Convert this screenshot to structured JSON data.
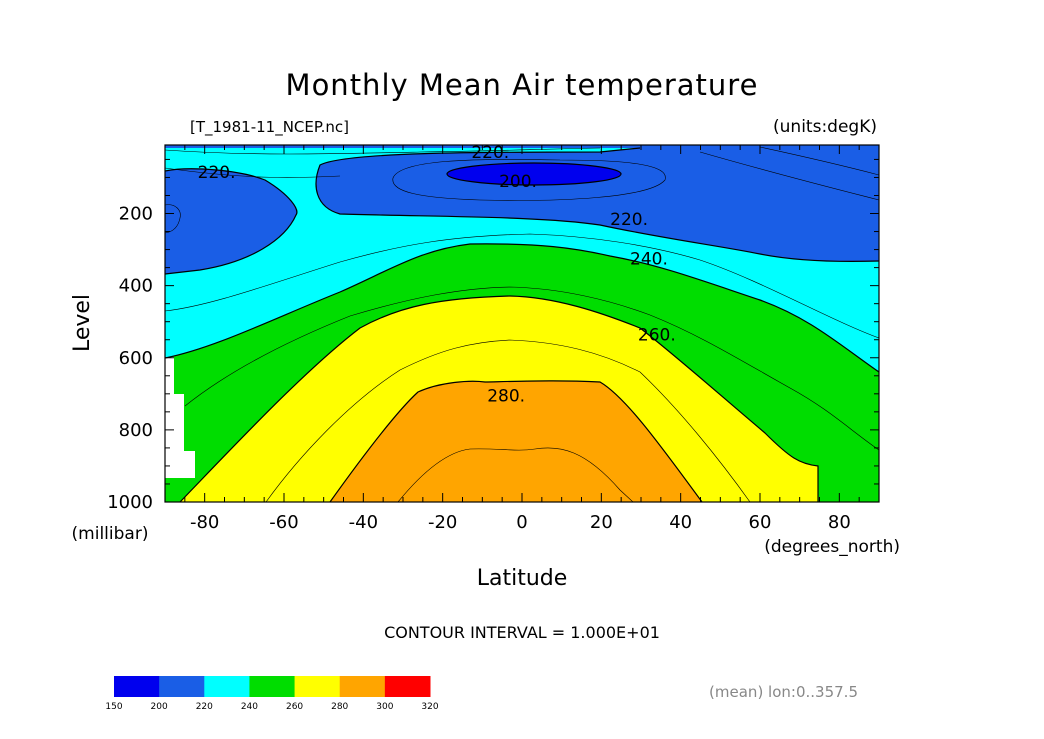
{
  "chart_data": {
    "type": "contour",
    "title": "Monthly Mean Air temperature",
    "file_label": "[T_1981-11_NCEP.nc]",
    "units_label": "(units:degK)",
    "xlabel": "Latitude",
    "x_units": "(degrees_north)",
    "ylabel": "Level",
    "y_units": "(millibar)",
    "xlim": [
      -90,
      90
    ],
    "ylim": [
      1000,
      10
    ],
    "x_ticks": [
      "-80",
      "-60",
      "-40",
      "-20",
      "0",
      "20",
      "40",
      "60",
      "80"
    ],
    "x_tick_values": [
      -80,
      -60,
      -40,
      -20,
      0,
      20,
      40,
      60,
      80
    ],
    "y_ticks": [
      "200",
      "400",
      "600",
      "800",
      "1000"
    ],
    "y_tick_values": [
      200,
      400,
      600,
      800,
      1000
    ],
    "contour_interval_text": "CONTOUR INTERVAL = 1.000E+01",
    "annotation": "(mean) lon:0..357.5",
    "contour_labels": [
      {
        "text": "220.",
        "x": -8,
        "y": 30
      },
      {
        "text": "220.",
        "x": -77,
        "y": 85
      },
      {
        "text": "200.",
        "x": -1,
        "y": 110
      },
      {
        "text": "220.",
        "x": 27,
        "y": 215
      },
      {
        "text": "240.",
        "x": 32,
        "y": 325
      },
      {
        "text": "260.",
        "x": 34,
        "y": 535
      },
      {
        "text": "280.",
        "x": -4,
        "y": 705
      }
    ],
    "levels": [
      150,
      200,
      220,
      240,
      260,
      280,
      300,
      320
    ],
    "colorbar": {
      "labels": [
        "150",
        "200",
        "220",
        "240",
        "260",
        "280",
        "300",
        "320"
      ],
      "colors": [
        "#0000ee",
        "#1a5ee6",
        "#00ffff",
        "#00dd00",
        "#ffff00",
        "#ffa500",
        "#ff0000"
      ]
    },
    "fill_colors": {
      "t200": "#0000ee",
      "t220": "#1a5ee6",
      "t240": "#00ffff",
      "t260": "#00dd00",
      "t280": "#ffff00",
      "t300": "#ffa500",
      "missing": "#ffffff"
    },
    "grid": false
  }
}
